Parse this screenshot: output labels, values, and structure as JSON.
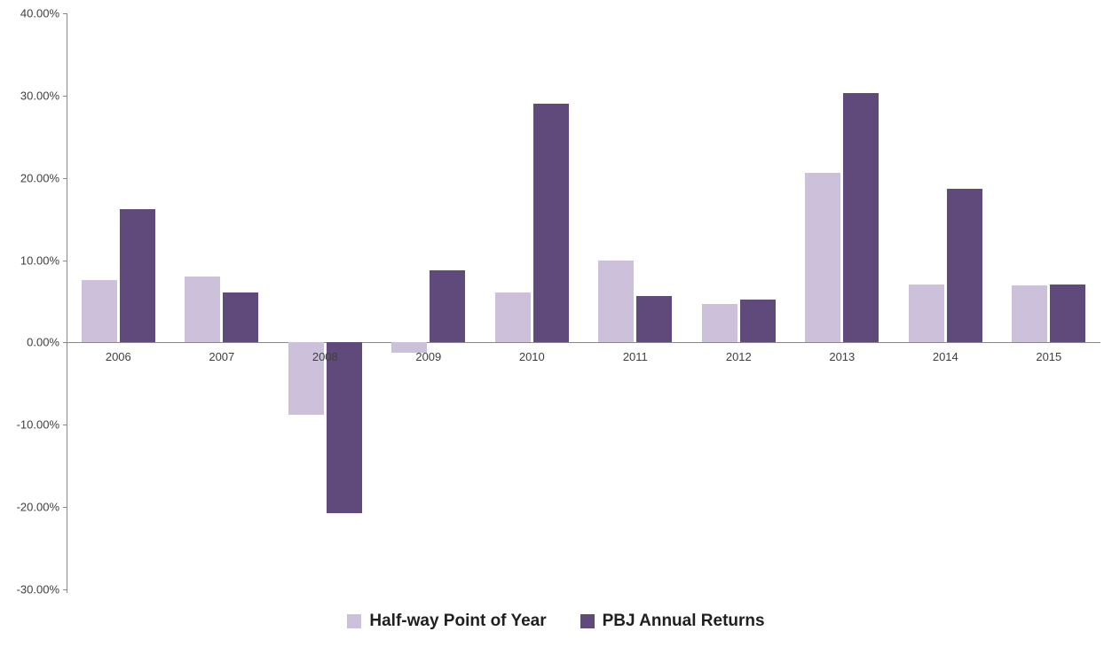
{
  "chart_data": {
    "type": "bar",
    "title": "",
    "categories": [
      "2006",
      "2007",
      "2008",
      "2009",
      "2010",
      "2011",
      "2012",
      "2013",
      "2014",
      "2015"
    ],
    "series": [
      {
        "name": "Half-way Point of Year",
        "color": "#CCC0DA",
        "values": [
          7.6,
          8.0,
          -8.8,
          -1.3,
          6.1,
          10.0,
          4.7,
          20.6,
          7.0,
          6.9
        ]
      },
      {
        "name": "PBJ Annual Returns",
        "color": "#604A7B",
        "values": [
          16.2,
          6.1,
          -20.8,
          8.8,
          29.0,
          5.7,
          5.2,
          30.3,
          18.7,
          7.1
        ]
      }
    ],
    "xlabel": "",
    "ylabel": "",
    "ylim": [
      -30,
      40
    ],
    "ytick_step": 10,
    "y_tick_labels": [
      "40.00%",
      "30.00%",
      "20.00%",
      "10.00%",
      "0.00%",
      "-10.00%",
      "-20.00%",
      "-30.00%"
    ],
    "grid": false,
    "legend_position": "bottom"
  }
}
